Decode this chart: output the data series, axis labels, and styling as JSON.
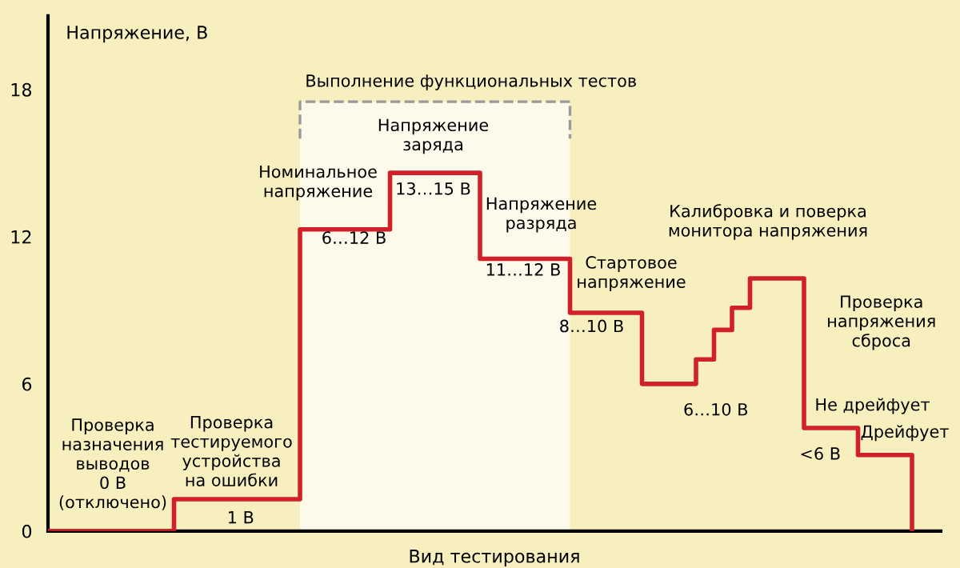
{
  "chart_data": {
    "type": "step",
    "ylabel": "Напряжение, В",
    "xlabel": "Вид тестирования",
    "categories": [
      null,
      null,
      null,
      null,
      null,
      null,
      null,
      null,
      null,
      null,
      null,
      null,
      null,
      null,
      null,
      null,
      null,
      null,
      null,
      null,
      null,
      null,
      null,
      null,
      null,
      null,
      null,
      null,
      null,
      null,
      null,
      null,
      null,
      null,
      null,
      null,
      null,
      null,
      null,
      null,
      null,
      null,
      null,
      null,
      null,
      null,
      null,
      null,
      null
    ],
    "series": [
      {
        "color": "#d0202a",
        "values": [
          0,
          0,
          0,
          0,
          0,
          0,
          0,
          1.3,
          1.3,
          1.3,
          1.3,
          1.3,
          1.3,
          1.3,
          12.3,
          12.3,
          12.3,
          12.3,
          12.3,
          14.6,
          14.6,
          14.6,
          14.6,
          14.6,
          11.1,
          11.1,
          11.1,
          11.1,
          11.1,
          8.9,
          8.9,
          8.9,
          8.9,
          6.0,
          6.0,
          6.0,
          7.0,
          8.2,
          9.1,
          10.3,
          10.3,
          10.3,
          4.2,
          4.2,
          4.2,
          3.1,
          3.1,
          3.1,
          0
        ]
      }
    ],
    "ylim": [
      0,
      21
    ],
    "yticks": [
      0,
      6,
      12,
      18
    ],
    "grid": false,
    "legend": false,
    "marker": "none",
    "line_style": "solid",
    "annotations": [
      "Выполнение функциональных тестов",
      "Проверка\nназначения\nвыводов\n0 В\n(отключено)",
      "Проверка\nтестируемого\nустройства\nна ошибки",
      "1 В",
      "Номинальное\nнапряжение",
      "6…12 В",
      "Напряжение\nзаряда",
      "13…15 В",
      "Напряжение\nразряда",
      "11…12 В",
      "Стартовое\nнапряжение",
      "8…10 В",
      "Калибровка и поверка\nмонитора напряжения",
      "6…10 В",
      "Проверка\nнапряжения\nсброса",
      "Не дрейфует",
      "<6 В",
      "Дрейфует"
    ]
  }
}
